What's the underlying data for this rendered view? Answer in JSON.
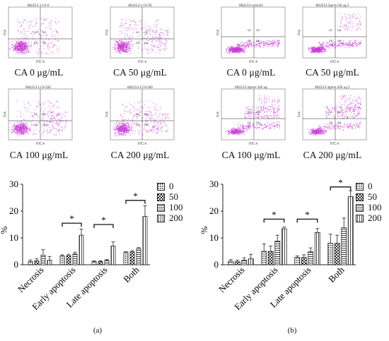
{
  "flow_panels": {
    "a": [
      {
        "title": "KKU213-1-CA-0",
        "caption": "CA 0 μg/mL"
      },
      {
        "title": "KKU213-1-CA-50",
        "caption": "CA 50 μg/mL"
      },
      {
        "title": "KKU213-1-CA-100",
        "caption": "CA 100 μg/mL"
      },
      {
        "title": "KKU213-1-CA-200",
        "caption": "CA 200 μg/mL"
      }
    ],
    "b": [
      {
        "title": "KKU213-control2",
        "caption": "CA 0 μg/mL"
      },
      {
        "title": "KKU213-3gmm-50 ug 2",
        "caption": "CA 50 μg/mL"
      },
      {
        "title": "KKU213-3gmm-100 ug",
        "caption": "CA 100 μg/mL"
      },
      {
        "title": "KKU213-3gmm-200 ug 2",
        "caption": "CA 200 μg/mL"
      }
    ],
    "axis_x": "FITC-A",
    "axis_y": "PI-A",
    "quadrants": [
      "Q1",
      "Q2",
      "Q3",
      "Q4"
    ],
    "dot_color": "#c83cd6"
  },
  "legend": {
    "entries": [
      "0",
      "50",
      "100",
      "200"
    ]
  },
  "panel_labels": {
    "a": "(a)",
    "b": "(b)"
  },
  "significance_marker": "*",
  "chart_data": [
    {
      "type": "bar",
      "panel": "(a)",
      "categories": [
        "Necrosis",
        "Early apoptosis",
        "Late apoptosis",
        "Both"
      ],
      "series": [
        {
          "name": "0",
          "values": [
            1.2,
            3.3,
            1.2,
            4.6
          ],
          "errors": [
            0.6,
            0.4,
            0.3,
            0.3
          ]
        },
        {
          "name": "50",
          "values": [
            1.5,
            3.4,
            1.2,
            4.8
          ],
          "errors": [
            0.7,
            0.5,
            0.3,
            0.4
          ]
        },
        {
          "name": "100",
          "values": [
            3.6,
            4.0,
            1.6,
            6.0
          ],
          "errors": [
            2.0,
            0.7,
            0.4,
            0.4
          ]
        },
        {
          "name": "200",
          "values": [
            1.7,
            11.0,
            7.0,
            18.0
          ],
          "errors": [
            1.4,
            2.3,
            1.5,
            4.0
          ]
        }
      ],
      "ylabel": "%",
      "ylim": [
        0,
        30
      ],
      "yticks": [
        0,
        10,
        20,
        30
      ],
      "significance": [
        {
          "from_category": "Early apoptosis",
          "y": 15.5
        },
        {
          "from_category": "Late apoptosis",
          "y": 15.0
        },
        {
          "from_category": "Both",
          "y": 24.0
        }
      ]
    },
    {
      "type": "bar",
      "panel": "(b)",
      "categories": [
        "Necrosis",
        "Early apoptosis",
        "Late apoptosis",
        "Both"
      ],
      "series": [
        {
          "name": "0",
          "values": [
            1.3,
            5.0,
            2.7,
            8.0
          ],
          "errors": [
            0.6,
            2.8,
            0.6,
            3.4
          ]
        },
        {
          "name": "50",
          "values": [
            1.1,
            5.0,
            2.7,
            8.0
          ],
          "errors": [
            0.6,
            2.0,
            1.0,
            3.0
          ]
        },
        {
          "name": "100",
          "values": [
            1.7,
            8.8,
            4.8,
            13.8
          ],
          "errors": [
            0.9,
            2.2,
            1.5,
            3.6
          ]
        },
        {
          "name": "200",
          "values": [
            2.2,
            13.4,
            12.0,
            25.4
          ],
          "errors": [
            1.7,
            0.7,
            1.5,
            2.2
          ]
        }
      ],
      "ylabel": "%",
      "ylim": [
        0,
        30
      ],
      "yticks": [
        0,
        10,
        20,
        30
      ],
      "significance": [
        {
          "from_category": "Early apoptosis",
          "y": 17.0
        },
        {
          "from_category": "Late apoptosis",
          "y": 17.0
        },
        {
          "from_category": "Both",
          "y": 29.0
        }
      ]
    }
  ]
}
